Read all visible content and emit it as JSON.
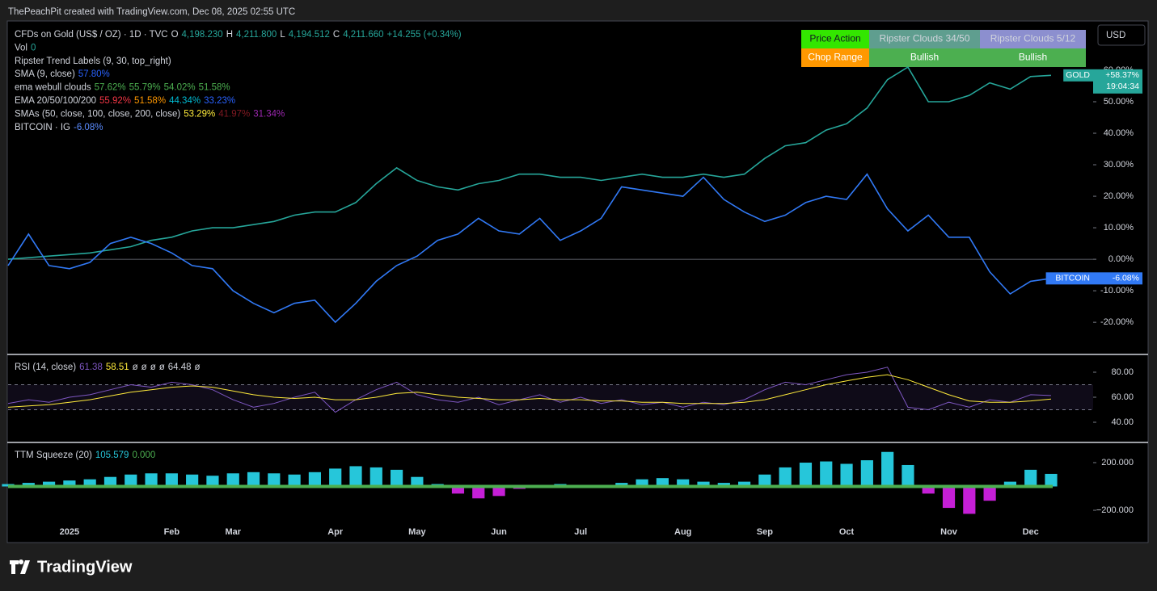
{
  "header": {
    "credit": "ThePeachPit created with TradingView.com, Dec 08, 2025 02:55 UTC"
  },
  "currency": "USD",
  "footer": {
    "brand": "TradingView"
  },
  "table": {
    "rows": [
      [
        {
          "text": "Price Action",
          "bg": "#33e600",
          "color": "#131722"
        },
        {
          "text": "Ripster Clouds 34/50",
          "bg": "#5f9e8f",
          "color": "#d1d4dc"
        },
        {
          "text": "Ripster Clouds 5/12",
          "bg": "#8c8fcf",
          "color": "#d1d4dc"
        }
      ],
      [
        {
          "text": "Chop Range",
          "bg": "#ff9800",
          "color": "#ffffff"
        },
        {
          "text": "Bullish",
          "bg": "#4caf50",
          "color": "#ffffff"
        },
        {
          "text": "Bullish",
          "bg": "#4caf50",
          "color": "#ffffff"
        }
      ]
    ]
  },
  "chart_data": [
    {
      "type": "line",
      "legend": [
        [
          {
            "text": "CFDs on Gold (US$ / OZ) · 1D · TVC"
          },
          {
            "text": "O"
          },
          {
            "text": "4,198.230",
            "color": "#26a69a"
          },
          {
            "text": "H"
          },
          {
            "text": "4,211.800",
            "color": "#26a69a"
          },
          {
            "text": "L"
          },
          {
            "text": "4,194.512",
            "color": "#26a69a"
          },
          {
            "text": "C"
          },
          {
            "text": "4,211.660",
            "color": "#26a69a"
          },
          {
            "text": "+14.255 (+0.34%)",
            "color": "#26a69a"
          }
        ],
        [
          {
            "text": "Vol"
          },
          {
            "text": "0",
            "color": "#26a69a"
          }
        ],
        [
          {
            "text": "Ripster Trend Labels (9, 30, top_right)"
          }
        ],
        [
          {
            "text": "SMA (9, close)"
          },
          {
            "text": "57.80%",
            "color": "#2962ff"
          }
        ],
        [
          {
            "text": "ema webull clouds"
          },
          {
            "text": "57.62%",
            "color": "#4caf50"
          },
          {
            "text": "55.79%",
            "color": "#4caf50"
          },
          {
            "text": "54.02%",
            "color": "#4caf50"
          },
          {
            "text": "51.58%",
            "color": "#4caf50"
          }
        ],
        [
          {
            "text": "EMA 20/50/100/200"
          },
          {
            "text": "55.92%",
            "color": "#f23645"
          },
          {
            "text": "51.58%",
            "color": "#ff9800"
          },
          {
            "text": "44.34%",
            "color": "#00bcd4"
          },
          {
            "text": "33.23%",
            "color": "#2962ff"
          }
        ],
        [
          {
            "text": "SMAs (50, close, 100, close, 200, close)"
          },
          {
            "text": "53.29%",
            "color": "#ffeb3b"
          },
          {
            "text": "41.97%",
            "color": "#801922"
          },
          {
            "text": "31.34%",
            "color": "#9c27b0"
          }
        ],
        [
          {
            "text": "BITCOIN · IG"
          },
          {
            "text": "-6.08%",
            "color": "#5b8cff"
          }
        ]
      ],
      "categories": [
        null,
        null,
        null,
        "2025",
        null,
        null,
        null,
        null,
        "Feb",
        null,
        null,
        "Mar",
        null,
        null,
        null,
        null,
        "Apr",
        null,
        null,
        null,
        "May",
        null,
        null,
        null,
        "Jun",
        null,
        null,
        null,
        "Jul",
        null,
        null,
        null,
        null,
        "Aug",
        null,
        null,
        null,
        "Sep",
        null,
        null,
        null,
        "Oct",
        null,
        null,
        null,
        null,
        "Nov",
        null,
        null,
        null,
        "Dec",
        null
      ],
      "series": [
        {
          "name": "GOLD",
          "color": "#26a69a",
          "countdown": "19:04:34",
          "values": [
            0,
            0.5,
            1,
            1.5,
            2,
            3,
            4,
            6,
            7,
            9,
            10,
            10,
            11,
            12,
            14,
            15,
            15,
            18,
            24,
            29,
            25,
            23,
            22,
            24,
            25,
            27,
            27,
            26,
            26,
            25,
            26,
            27,
            26,
            26,
            27,
            26,
            27,
            32,
            36,
            37,
            41,
            43,
            48,
            57,
            61,
            50,
            50,
            52,
            56,
            54,
            58,
            58.37
          ],
          "value_labels": [
            null,
            null,
            null,
            null,
            null,
            null,
            null,
            null,
            null,
            null,
            null,
            null,
            null,
            null,
            null,
            null,
            null,
            null,
            null,
            null,
            null,
            null,
            null,
            null,
            null,
            null,
            null,
            null,
            null,
            null,
            null,
            null,
            null,
            null,
            null,
            null,
            null,
            null,
            null,
            null,
            null,
            null,
            null,
            null,
            null,
            null,
            null,
            null,
            null,
            null,
            null,
            "+58.37%"
          ]
        },
        {
          "name": "BITCOIN",
          "color": "#3179f5",
          "values": [
            -2,
            8,
            -2,
            -3,
            -1,
            5,
            7,
            5,
            2,
            -2,
            -3,
            -10,
            -14,
            -17,
            -14,
            -13,
            -20,
            -14,
            -7,
            -2,
            1,
            6,
            8,
            13,
            9,
            8,
            13,
            6,
            9,
            13,
            23,
            22,
            21,
            20,
            26,
            19,
            15,
            12,
            14,
            18,
            20,
            19,
            27,
            16,
            9,
            14,
            7,
            7,
            -4,
            -11,
            -7,
            -6.08
          ],
          "value_labels": [
            null,
            null,
            null,
            null,
            null,
            null,
            null,
            null,
            null,
            null,
            null,
            null,
            null,
            null,
            null,
            null,
            null,
            null,
            null,
            null,
            null,
            null,
            null,
            null,
            null,
            null,
            null,
            null,
            null,
            null,
            null,
            null,
            null,
            null,
            null,
            null,
            null,
            null,
            null,
            null,
            null,
            null,
            null,
            null,
            null,
            null,
            null,
            null,
            null,
            null,
            null,
            "-6.08%"
          ]
        }
      ],
      "ylim": [
        -29.7,
        74.6
      ],
      "yticks": [
        {
          "value": -20,
          "label": "-20.00%"
        },
        {
          "value": -10,
          "label": "-10.00%"
        },
        {
          "value": 0,
          "label": "0.00%"
        },
        {
          "value": 10,
          "label": "10.00%"
        },
        {
          "value": 20,
          "label": "20.00%"
        },
        {
          "value": 30,
          "label": "30.00%"
        },
        {
          "value": 40,
          "label": "40.00%"
        },
        {
          "value": 50,
          "label": "50.00%"
        },
        {
          "value": 60,
          "label": "60.00%"
        }
      ],
      "zero_line": true
    },
    {
      "type": "line",
      "legend": [
        [
          {
            "text": "RSI (14, close)"
          },
          {
            "text": "61.38",
            "color": "#7e57c2"
          },
          {
            "text": "58.51",
            "color": "#ffeb3b"
          },
          {
            "text": "ø"
          },
          {
            "text": "ø"
          },
          {
            "text": "ø"
          },
          {
            "text": "ø"
          },
          {
            "text": "64.48"
          },
          {
            "text": "ø"
          }
        ]
      ],
      "series": [
        {
          "color": "#7e57c2",
          "values": [
            55,
            58,
            56,
            60,
            62,
            66,
            70,
            68,
            72,
            70,
            66,
            58,
            52,
            55,
            60,
            64,
            48,
            58,
            66,
            72,
            62,
            58,
            56,
            60,
            54,
            58,
            62,
            56,
            60,
            55,
            58,
            54,
            56,
            52,
            56,
            54,
            58,
            66,
            72,
            70,
            74,
            78,
            80,
            84,
            52,
            50,
            56,
            52,
            58,
            56,
            62,
            61.38
          ]
        },
        {
          "color": "#ffeb3b",
          "values": [
            52,
            53,
            54,
            56,
            58,
            61,
            64,
            66,
            68,
            69,
            68,
            65,
            62,
            60,
            59,
            60,
            58,
            58,
            60,
            63,
            64,
            62,
            60,
            59,
            58,
            58,
            59,
            58,
            58,
            57,
            57,
            56,
            56,
            55,
            55,
            55,
            56,
            58,
            62,
            66,
            70,
            73,
            76,
            78,
            74,
            68,
            62,
            57,
            56,
            56,
            57,
            58.51
          ]
        }
      ],
      "bands": [
        70,
        50
      ],
      "ylim": [
        25.8,
        92.9
      ],
      "yticks": [
        {
          "value": 40,
          "label": "40.00"
        },
        {
          "value": 60,
          "label": "60.00"
        },
        {
          "value": 80,
          "label": "80.00"
        }
      ]
    },
    {
      "type": "bar",
      "legend": [
        [
          {
            "text": "TTM Squeeze (20)"
          },
          {
            "text": "105.579",
            "color": "#26c6da"
          },
          {
            "text": "0.000",
            "color": "#4caf50"
          }
        ]
      ],
      "colors": {
        "up": "#26c6da",
        "down": "#c51fd6"
      },
      "values": [
        20,
        30,
        40,
        50,
        60,
        80,
        100,
        110,
        110,
        100,
        90,
        110,
        120,
        110,
        100,
        120,
        150,
        170,
        160,
        140,
        80,
        20,
        -60,
        -100,
        -80,
        -20,
        10,
        20,
        -10,
        0,
        30,
        60,
        70,
        60,
        40,
        30,
        40,
        100,
        160,
        200,
        210,
        190,
        220,
        290,
        180,
        -60,
        -180,
        -230,
        -120,
        40,
        140,
        105.579
      ],
      "ylim": [
        -444,
        356
      ],
      "yticks": [
        {
          "value": 200,
          "label": "200.000"
        },
        {
          "value": -200,
          "label": "−200.000"
        }
      ]
    }
  ]
}
